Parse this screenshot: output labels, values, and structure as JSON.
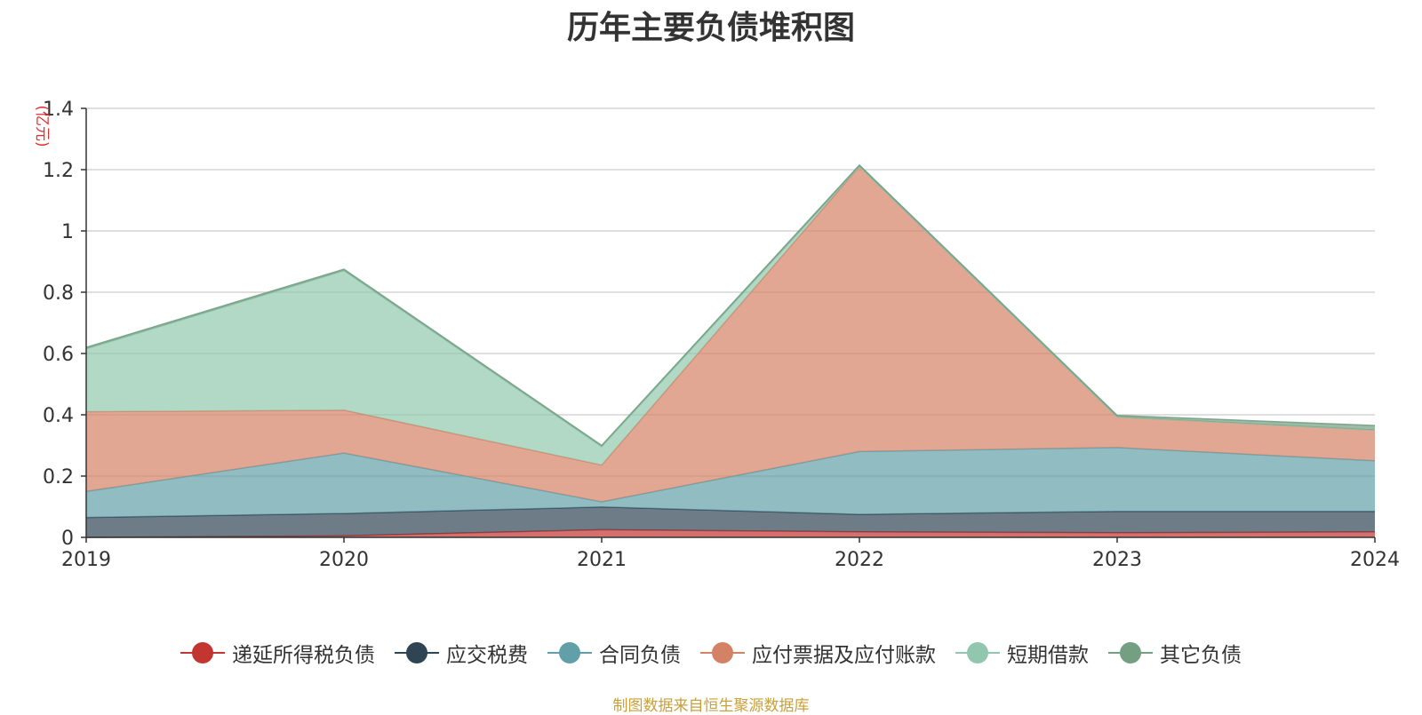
{
  "chart_data": {
    "type": "area",
    "stacked": true,
    "title": "历年主要负债堆积图",
    "ylabel": "(亿元)",
    "xlabel": "",
    "x": [
      "2019",
      "2020",
      "2021",
      "2022",
      "2023",
      "2024"
    ],
    "ylim": [
      0,
      1.4
    ],
    "yticks": [
      0,
      0.2,
      0.4,
      0.6,
      0.8,
      1,
      1.2,
      1.4
    ],
    "ytick_labels": [
      "0",
      "0.2",
      "0.4",
      "0.6",
      "0.8",
      "1",
      "1.2",
      "1.4"
    ],
    "grid": true,
    "legend_position": "bottom",
    "series": [
      {
        "name": "递延所得税负债",
        "color": "#c23531",
        "values": [
          0.0,
          0.005,
          0.025,
          0.018,
          0.015,
          0.018
        ]
      },
      {
        "name": "应交税费",
        "color": "#2f4554",
        "values": [
          0.065,
          0.073,
          0.074,
          0.057,
          0.07,
          0.067
        ]
      },
      {
        "name": "合同负债",
        "color": "#61a0a8",
        "values": [
          0.085,
          0.197,
          0.017,
          0.205,
          0.208,
          0.165
        ]
      },
      {
        "name": "应付票据及应付账款",
        "color": "#d48265",
        "values": [
          0.26,
          0.14,
          0.12,
          0.93,
          0.1,
          0.1
        ]
      },
      {
        "name": "短期借款",
        "color": "#91c7ae",
        "values": [
          0.205,
          0.455,
          0.06,
          0.0,
          0.0,
          0.0
        ]
      },
      {
        "name": "其它负债",
        "color": "#749f83",
        "values": [
          0.005,
          0.005,
          0.004,
          0.005,
          0.005,
          0.015
        ]
      }
    ]
  },
  "source_note": "制图数据来自恒生聚源数据库"
}
